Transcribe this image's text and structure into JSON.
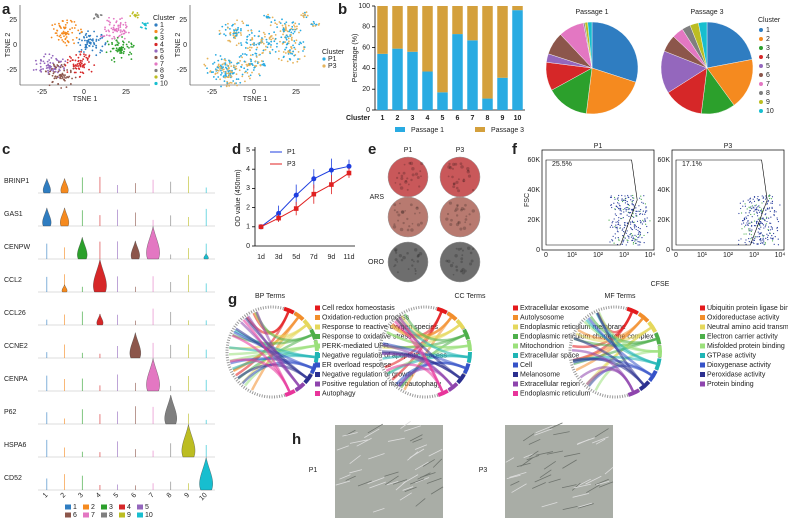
{
  "panel_labels": [
    "a",
    "b",
    "c",
    "d",
    "e",
    "f",
    "g",
    "h"
  ],
  "tsne": {
    "x_label": "TSNE 1",
    "y_label": "TSNE 2",
    "x_ticks": [
      "-25",
      "0",
      "25"
    ],
    "y_ticks": [
      "25",
      "0",
      "-25"
    ],
    "cluster_title": "Cluster",
    "clusters": [
      "1",
      "2",
      "3",
      "4",
      "5",
      "6",
      "7",
      "8",
      "9",
      "10"
    ],
    "passages": [
      "P1",
      "P3"
    ]
  },
  "chart_data": [
    {
      "type": "bar",
      "stacked": true,
      "categories": [
        "1",
        "2",
        "3",
        "4",
        "5",
        "6",
        "7",
        "8",
        "9",
        "10"
      ],
      "x_label": "Cluster",
      "y_label": "Percentage (%)",
      "series": [
        {
          "name": "Passage 1",
          "color": "#29abe2",
          "values": [
            54,
            59,
            56,
            37,
            17,
            73,
            67,
            11,
            31,
            96
          ]
        },
        {
          "name": "Passage 3",
          "color": "#d4a03c",
          "values": [
            46,
            41,
            44,
            63,
            83,
            27,
            33,
            89,
            69,
            4
          ]
        }
      ],
      "ylim": [
        0,
        100
      ],
      "yticks": [
        0,
        20,
        40,
        60,
        80,
        100
      ]
    },
    {
      "type": "pie",
      "legend_title": "Cluster",
      "categories": [
        "1",
        "2",
        "3",
        "4",
        "5",
        "6",
        "7",
        "8",
        "9",
        "10"
      ],
      "colors": [
        "#2f7dc1",
        "#f58a1f",
        "#2ca02c",
        "#d62728",
        "#9467bd",
        "#8c564b",
        "#e377c2",
        "#7f7f7f",
        "#bcbd22",
        "#17becf"
      ],
      "series": [
        {
          "name": "Passage 1",
          "color": "#29abe2",
          "values": [
            30,
            22,
            15,
            10,
            3,
            8,
            9,
            0.5,
            1,
            1.5
          ]
        },
        {
          "name": "Passage 3",
          "color": "#d4a03c",
          "values": [
            22,
            18,
            12,
            14,
            15,
            6,
            4,
            3,
            3,
            3
          ]
        }
      ]
    },
    {
      "type": "line",
      "categories": [
        "1d",
        "3d",
        "5d",
        "7d",
        "9d",
        "11d"
      ],
      "y_label": "OD value (450nm)",
      "series": [
        {
          "name": "P1",
          "color": "#1f3fe0",
          "values": [
            1.0,
            1.7,
            2.65,
            3.5,
            3.95,
            4.15
          ],
          "errors": [
            0.1,
            0.4,
            0.55,
            0.5,
            0.6,
            0.35
          ]
        },
        {
          "name": "P3",
          "color": "#e02020",
          "values": [
            1.0,
            1.45,
            1.95,
            2.7,
            3.2,
            3.8
          ],
          "errors": [
            0.1,
            0.2,
            0.35,
            0.5,
            0.5,
            0.25
          ]
        }
      ],
      "ylim": [
        0,
        5
      ],
      "yticks": [
        0,
        1,
        2,
        3,
        4,
        5
      ]
    }
  ],
  "violin": {
    "genes": [
      "BRINP1",
      "GAS1",
      "CENPW",
      "CCL2",
      "CCL26",
      "CCNE2",
      "CENPA",
      "P62",
      "HSPA6",
      "CD52"
    ]
  },
  "staining": {
    "columns": [
      "P1",
      "P3"
    ],
    "rows": [
      "ARS",
      "ORO"
    ]
  },
  "flow": {
    "panels": [
      {
        "title": "P1",
        "gate": "25.5%"
      },
      {
        "title": "P3",
        "gate": "17.1%"
      }
    ],
    "y_label": "FSC",
    "x_label": "CFSE",
    "yticks": [
      "0",
      "20K",
      "40K",
      "60K"
    ],
    "xticks": [
      "0",
      "10¹",
      "10²",
      "10³",
      "10⁴"
    ]
  },
  "go": [
    {
      "title": "BP Terms",
      "terms": [
        "Cell redox homeostasis",
        "Oxidation-reduction process",
        "Response to reactive oxygen species",
        "Response to oxidative stress",
        "PERK-mediated UPR",
        "Negative regulation of apoptotic process",
        "ER overload response",
        "Negative regulation of growth",
        "Positive regulation of macroautophagy",
        "Autophagy"
      ]
    },
    {
      "title": "CC Terms",
      "terms": [
        "Extracellular exosome",
        "Autolysosome",
        "Endoplasmic reticulum membrane",
        "Endoplasmic reticulum chaperone complex",
        "Mitochondrion",
        "Extracellular space",
        "Cell",
        "Melanosome",
        "Extracellular region",
        "Endoplasmic reticulum"
      ]
    },
    {
      "title": "MF Terms",
      "terms": [
        "Ubiquitin protein ligase binding",
        "Oxidoreductase activity",
        "Neutral amino acid transmembrane transporter activity",
        "Electron carrier activity",
        "Misfolded protein binding",
        "GTPase activity",
        "Dioxygenase activity",
        "Peroxidase activity",
        "Protein binding"
      ]
    }
  ],
  "micro": {
    "labels": [
      "P1",
      "P3"
    ]
  }
}
